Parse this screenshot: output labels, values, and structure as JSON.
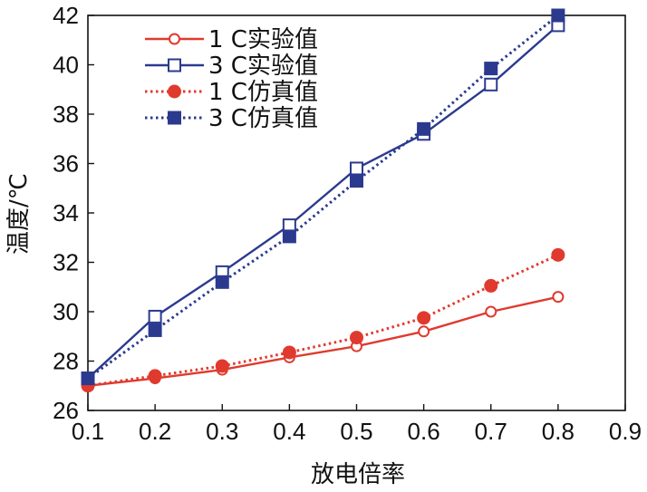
{
  "chart_data": {
    "type": "line",
    "title": "",
    "xlabel": "放电倍率",
    "ylabel": "温度/℃",
    "xlim": [
      0.1,
      0.9
    ],
    "ylim": [
      26,
      42
    ],
    "xticks": [
      "0.1",
      "0.2",
      "0.3",
      "0.4",
      "0.5",
      "0.6",
      "0.7",
      "0.8",
      "0.9"
    ],
    "yticks": [
      "26",
      "28",
      "30",
      "32",
      "34",
      "36",
      "38",
      "40",
      "42"
    ],
    "grid": false,
    "legend_position": "top-left",
    "x": [
      0.1,
      0.2,
      0.3,
      0.4,
      0.5,
      0.6,
      0.7,
      0.8
    ],
    "series": [
      {
        "name": "1 C实验值",
        "values": [
          27.0,
          27.3,
          27.65,
          28.15,
          28.6,
          29.2,
          30.0,
          30.6
        ],
        "color": "#e03a2e",
        "line_style": "solid",
        "marker": "circle",
        "marker_filled": false
      },
      {
        "name": "3 C实验值",
        "values": [
          27.3,
          29.8,
          31.6,
          33.5,
          35.8,
          37.2,
          39.2,
          41.6
        ],
        "color": "#2b3a8f",
        "line_style": "solid",
        "marker": "square",
        "marker_filled": false
      },
      {
        "name": "1 C仿真值",
        "values": [
          27.0,
          27.4,
          27.8,
          28.35,
          28.95,
          29.75,
          31.05,
          32.3
        ],
        "color": "#e03a2e",
        "line_style": "dotted",
        "marker": "circle",
        "marker_filled": true
      },
      {
        "name": "3 C仿真值",
        "values": [
          27.3,
          29.25,
          31.2,
          33.05,
          35.3,
          37.4,
          39.85,
          42.0
        ],
        "color": "#2b3a8f",
        "line_style": "dotted",
        "marker": "square",
        "marker_filled": true
      }
    ]
  }
}
